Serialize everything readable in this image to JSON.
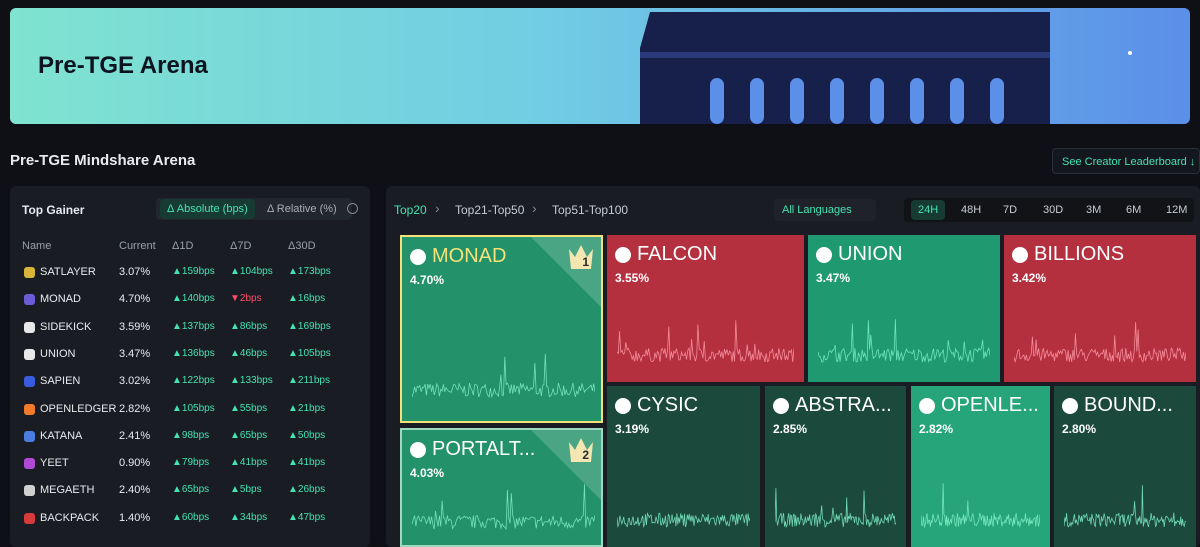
{
  "banner": {
    "title": "Pre-TGE Arena"
  },
  "section": {
    "title": "Pre-TGE Mindshare Arena",
    "link": "See Creator Leaderboard ↓"
  },
  "gainer": {
    "title": "Top Gainer",
    "tabs": [
      "Δ Absolute (bps)",
      "Δ Relative (%)"
    ],
    "columns": [
      "Name",
      "Current",
      "Δ1D",
      "Δ7D",
      "Δ30D"
    ],
    "rows": [
      [
        "SATLAYER",
        "3.07%",
        "▲159bps",
        "▲104bps",
        "▲173bps"
      ],
      [
        "MONAD",
        "4.70%",
        "▲140bps",
        "▼2bps",
        "▲16bps"
      ],
      [
        "SIDEKICK",
        "3.59%",
        "▲137bps",
        "▲86bps",
        "▲169bps"
      ],
      [
        "UNION",
        "3.47%",
        "▲136bps",
        "▲46bps",
        "▲105bps"
      ],
      [
        "SAPIEN",
        "3.02%",
        "▲122bps",
        "▲133bps",
        "▲211bps"
      ],
      [
        "OPENLEDGER",
        "2.82%",
        "▲105bps",
        "▲55bps",
        "▲21bps"
      ],
      [
        "KATANA",
        "2.41%",
        "▲98bps",
        "▲65bps",
        "▲50bps"
      ],
      [
        "YEET",
        "0.90%",
        "▲79bps",
        "▲41bps",
        "▲41bps"
      ],
      [
        "MEGAETH",
        "2.40%",
        "▲65bps",
        "▲5bps",
        "▲26bps"
      ],
      [
        "BACKPACK",
        "1.40%",
        "▲60bps",
        "▲34bps",
        "▲47bps"
      ]
    ]
  },
  "arena": {
    "tiers": [
      "Top20",
      "Top21-Top50",
      "Top51-Top100"
    ],
    "language": "All Languages",
    "periods": [
      "24H",
      "48H",
      "7D",
      "30D",
      "3M",
      "6M",
      "12M"
    ],
    "tiles": [
      {
        "name": "MONAD",
        "share": "4.70%",
        "rank": "1"
      },
      {
        "name": "PORTALT...",
        "share": "4.03%",
        "rank": "2"
      },
      {
        "name": "FALCON",
        "share": "3.55%"
      },
      {
        "name": "UNION",
        "share": "3.47%"
      },
      {
        "name": "BILLIONS",
        "share": "3.42%"
      },
      {
        "name": "CYSIC",
        "share": "3.19%"
      },
      {
        "name": "ABSTRA...",
        "share": "2.85%"
      },
      {
        "name": "OPENLE...",
        "share": "2.82%"
      },
      {
        "name": "BOUND...",
        "share": "2.80%"
      }
    ]
  }
}
